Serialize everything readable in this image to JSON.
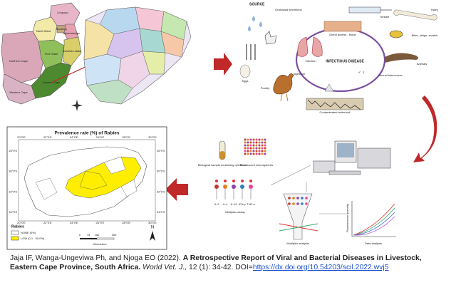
{
  "province_map": {
    "provinces": [
      "Limpopo",
      "North West",
      "Gauteng",
      "Mpumalanga",
      "Northern Cape",
      "Free State",
      "KwaZulu-Natal",
      "Eastern Cape",
      "Western Cape"
    ]
  },
  "disease_diagram": {
    "source": "SOURCE",
    "center": "INFECTIOUS DISEASE",
    "labels": [
      "Oral/nasal secretions",
      "Needle",
      "Injury",
      "Infection",
      "Direct access - blood",
      "Bites, stings, scratch",
      "Animals",
      "Eggs",
      "Ingestion",
      "Sexual intercourse",
      "Poultry",
      "Contaminated water/soil"
    ]
  },
  "assay": {
    "labels": [
      "Biological sample containing cytokines",
      "Fluorescent microspheres",
      "Multiplex assay",
      "Multiplex analysis",
      "Data analysis",
      "Fluorescence intensity"
    ],
    "beads": [
      "IL-2",
      "IL-4",
      "IL-10",
      "IFN-γ",
      "TNF-α"
    ]
  },
  "prevalence_map": {
    "title": "Prevalence rate (%) of Rabies",
    "xticks": [
      "20°0'E",
      "22°0'E",
      "24°0'E",
      "26°0'E",
      "28°0'E",
      "30°0'E"
    ],
    "yticks": [
      "28°0'S",
      "30°0'S",
      "32°0'S",
      "34°0'S"
    ],
    "legend_title": "Rabies",
    "legend": [
      "NONE (0%)",
      "LOW (0.1 - 50.0%)"
    ],
    "scale": [
      "0",
      "75",
      "150",
      "300"
    ],
    "scale_unit": "Kilometers",
    "north": "N"
  },
  "citation": {
    "authors": "Jaja IF, Wanga-Ungeviwa Ph, and Njoga EO (2022).",
    "title": "A Retrospective Report of Viral and Bacterial Diseases in Livestock, Eastern Cape Province, South Africa.",
    "journal": "World Vet. J.,",
    "volume": "12 (1): 34-42.",
    "doi_label": "DOI=",
    "doi": "https://dx.doi.org/10.54203/scil.2022.wvj5"
  }
}
